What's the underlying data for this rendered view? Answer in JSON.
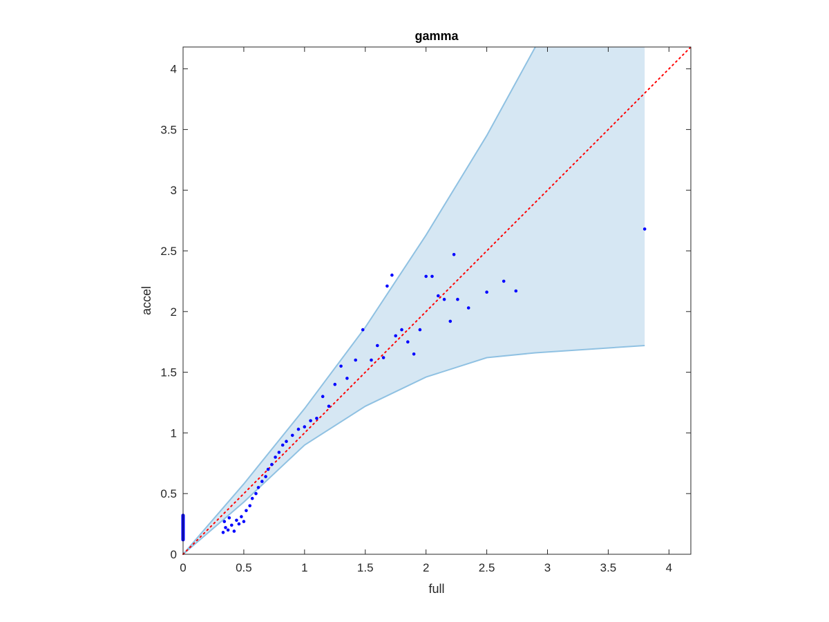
{
  "chart_data": {
    "type": "scatter",
    "title": "gamma",
    "xlabel": "full",
    "ylabel": "accel",
    "xlim": [
      0,
      4.18
    ],
    "ylim": [
      0,
      4.18
    ],
    "xticks": [
      "0",
      "0.5",
      "1",
      "1.5",
      "2",
      "2.5",
      "3",
      "3.5",
      "4"
    ],
    "yticks": [
      "0",
      "0.5",
      "1",
      "1.5",
      "2",
      "2.5",
      "3",
      "3.5",
      "4"
    ],
    "grid": false,
    "legend": "none",
    "colors": {
      "points": "#0000ff",
      "reference_line": "#ff0000",
      "band_fill": "#d6e7f3",
      "band_edge": "#8fc1e2",
      "axes": "#262626"
    },
    "reference_line": {
      "style": "dotted",
      "x": [
        0,
        4.18
      ],
      "y": [
        0,
        4.18
      ]
    },
    "band": {
      "x": [
        0,
        0.5,
        1.0,
        1.5,
        2.0,
        2.5,
        2.9,
        3.8
      ],
      "upper": [
        0,
        0.58,
        1.2,
        1.87,
        2.63,
        3.45,
        4.18,
        4.18
      ],
      "lower": [
        0,
        0.43,
        0.9,
        1.22,
        1.46,
        1.62,
        1.66,
        1.72
      ]
    },
    "cluster_at_zero": {
      "x": 0,
      "y_min": 0.12,
      "y_max": 0.32
    },
    "points": [
      {
        "x": 0.33,
        "y": 0.18
      },
      {
        "x": 0.34,
        "y": 0.27
      },
      {
        "x": 0.35,
        "y": 0.22
      },
      {
        "x": 0.37,
        "y": 0.2
      },
      {
        "x": 0.38,
        "y": 0.3
      },
      {
        "x": 0.4,
        "y": 0.24
      },
      {
        "x": 0.42,
        "y": 0.19
      },
      {
        "x": 0.44,
        "y": 0.28
      },
      {
        "x": 0.46,
        "y": 0.25
      },
      {
        "x": 0.48,
        "y": 0.31
      },
      {
        "x": 0.5,
        "y": 0.27
      },
      {
        "x": 0.52,
        "y": 0.36
      },
      {
        "x": 0.55,
        "y": 0.4
      },
      {
        "x": 0.57,
        "y": 0.46
      },
      {
        "x": 0.6,
        "y": 0.5
      },
      {
        "x": 0.62,
        "y": 0.55
      },
      {
        "x": 0.65,
        "y": 0.6
      },
      {
        "x": 0.68,
        "y": 0.64
      },
      {
        "x": 0.7,
        "y": 0.7
      },
      {
        "x": 0.73,
        "y": 0.74
      },
      {
        "x": 0.76,
        "y": 0.8
      },
      {
        "x": 0.79,
        "y": 0.84
      },
      {
        "x": 0.82,
        "y": 0.9
      },
      {
        "x": 0.85,
        "y": 0.93
      },
      {
        "x": 0.9,
        "y": 0.98
      },
      {
        "x": 0.95,
        "y": 1.03
      },
      {
        "x": 1.0,
        "y": 1.05
      },
      {
        "x": 1.05,
        "y": 1.1
      },
      {
        "x": 1.1,
        "y": 1.12
      },
      {
        "x": 1.15,
        "y": 1.3
      },
      {
        "x": 1.2,
        "y": 1.22
      },
      {
        "x": 1.25,
        "y": 1.4
      },
      {
        "x": 1.3,
        "y": 1.55
      },
      {
        "x": 1.35,
        "y": 1.45
      },
      {
        "x": 1.42,
        "y": 1.6
      },
      {
        "x": 1.48,
        "y": 1.85
      },
      {
        "x": 1.55,
        "y": 1.6
      },
      {
        "x": 1.6,
        "y": 1.72
      },
      {
        "x": 1.65,
        "y": 1.62
      },
      {
        "x": 1.68,
        "y": 2.21
      },
      {
        "x": 1.72,
        "y": 2.3
      },
      {
        "x": 1.75,
        "y": 1.8
      },
      {
        "x": 1.8,
        "y": 1.85
      },
      {
        "x": 1.85,
        "y": 1.75
      },
      {
        "x": 1.9,
        "y": 1.65
      },
      {
        "x": 1.95,
        "y": 1.85
      },
      {
        "x": 2.0,
        "y": 2.29
      },
      {
        "x": 2.05,
        "y": 2.29
      },
      {
        "x": 2.1,
        "y": 2.13
      },
      {
        "x": 2.15,
        "y": 2.1
      },
      {
        "x": 2.2,
        "y": 1.92
      },
      {
        "x": 2.23,
        "y": 2.47
      },
      {
        "x": 2.26,
        "y": 2.1
      },
      {
        "x": 2.35,
        "y": 2.03
      },
      {
        "x": 2.5,
        "y": 2.16
      },
      {
        "x": 2.64,
        "y": 2.25
      },
      {
        "x": 2.74,
        "y": 2.17
      },
      {
        "x": 3.8,
        "y": 2.68
      }
    ]
  }
}
